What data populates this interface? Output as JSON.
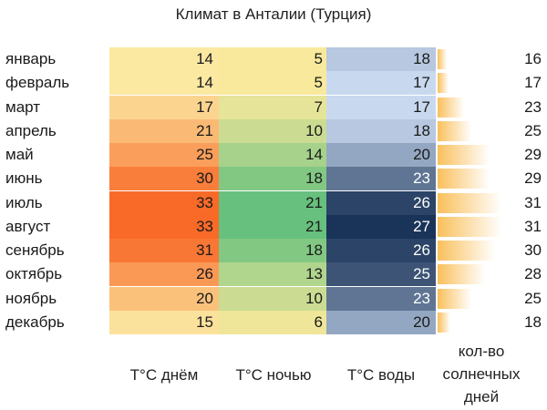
{
  "title": "Климат в Анталии (Турция)",
  "headers": {
    "day": "T°C днём",
    "night": "T°C ночью",
    "water": "T°C воды",
    "sun_line1": "кол-во",
    "sun_line2": "солнечных",
    "sun_line3": "дней"
  },
  "chart_data": {
    "type": "table",
    "title": "Климат в Анталии (Турция)",
    "categories": [
      "январь",
      "февраль",
      "март",
      "апрель",
      "май",
      "июнь",
      "июль",
      "август",
      "сенябрь",
      "октябрь",
      "ноябрь",
      "декабрь"
    ],
    "series": [
      {
        "name": "T°C днём",
        "values": [
          14,
          14,
          17,
          21,
          25,
          30,
          33,
          33,
          31,
          26,
          20,
          15
        ]
      },
      {
        "name": "T°C ночью",
        "values": [
          5,
          5,
          7,
          10,
          14,
          18,
          21,
          21,
          18,
          13,
          10,
          6
        ]
      },
      {
        "name": "T°C воды",
        "values": [
          18,
          17,
          17,
          18,
          20,
          23,
          26,
          27,
          26,
          25,
          23,
          20
        ]
      },
      {
        "name": "кол-во солнечных дней",
        "values": [
          16,
          17,
          23,
          25,
          29,
          29,
          31,
          31,
          30,
          28,
          25,
          18
        ]
      }
    ]
  },
  "colors": {
    "day_low": "#fbe9a2",
    "day_high": "#f96a28",
    "night_low": "#f8e99c",
    "night_high": "#67c07d",
    "water_low": "#c8d9ef",
    "water_high": "#1a3358",
    "sun_bar": "#f9c05c"
  }
}
